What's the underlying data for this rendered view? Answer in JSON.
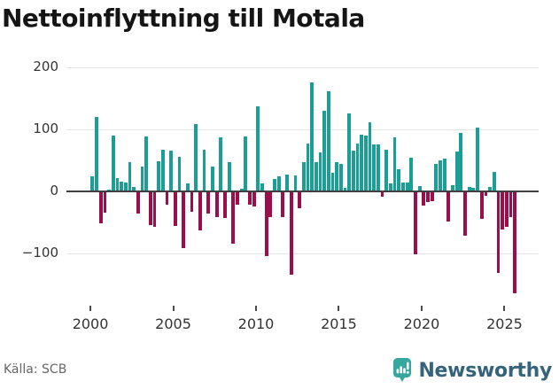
{
  "title": "Nettoinflyttning till Motala",
  "source": "Källa: SCB",
  "branding": {
    "name": "Newsworthy",
    "badge_icon": "bar-chart-exclamation-icon",
    "badge_color": "#35a79f",
    "text_color": "#35647a"
  },
  "colors": {
    "positive_bar": "#1b9e95",
    "negative_bar": "#9c0d4c",
    "gridline": "#e4e4e4",
    "zero_line": "#3f3f3f",
    "axis_text": "#333333",
    "title_text": "#151515",
    "source_text": "#666666"
  },
  "axis": {
    "y_ticks": [
      {
        "value": 200,
        "label": "200"
      },
      {
        "value": 100,
        "label": "100"
      },
      {
        "value": 0,
        "label": "0"
      },
      {
        "value": -100,
        "label": "−100"
      }
    ],
    "x_ticks": [
      {
        "year": 2000,
        "label": "2000"
      },
      {
        "year": 2005,
        "label": "2005"
      },
      {
        "year": 2010,
        "label": "2010"
      },
      {
        "year": 2015,
        "label": "2015"
      },
      {
        "year": 2020,
        "label": "2020"
      },
      {
        "year": 2025,
        "label": "2025"
      }
    ],
    "ylim": [
      -175,
      215
    ],
    "grid": true
  },
  "chart_data": {
    "type": "bar",
    "title": "Nettoinflyttning till Motala",
    "xlabel": "",
    "ylabel": "",
    "frequency": "quarterly",
    "start_period": "2000-Q1",
    "end_period": "2025-Q3",
    "legend": null,
    "values": [
      24,
      119,
      -50,
      -34,
      2,
      90,
      21,
      15,
      14,
      47,
      7,
      -35,
      40,
      88,
      -54,
      -56,
      48,
      67,
      -21,
      65,
      -55,
      55,
      -91,
      12,
      -32,
      108,
      -62,
      67,
      -35,
      40,
      -40,
      87,
      -42,
      47,
      -83,
      -20,
      4,
      88,
      -21,
      -24,
      136,
      12,
      -103,
      -40,
      20,
      23,
      -41,
      26,
      -134,
      25,
      -27,
      46,
      76,
      175,
      46,
      62,
      130,
      161,
      29,
      46,
      43,
      5,
      125,
      65,
      77,
      91,
      89,
      111,
      75,
      75,
      -8,
      67,
      12,
      87,
      35,
      14,
      14,
      54,
      -100,
      8,
      -22,
      -17,
      -15,
      44,
      49,
      52,
      -48,
      9,
      64,
      93,
      -70,
      7,
      5,
      102,
      -44,
      -7,
      6,
      31,
      -130,
      -60,
      -57,
      -40,
      -164
    ]
  }
}
